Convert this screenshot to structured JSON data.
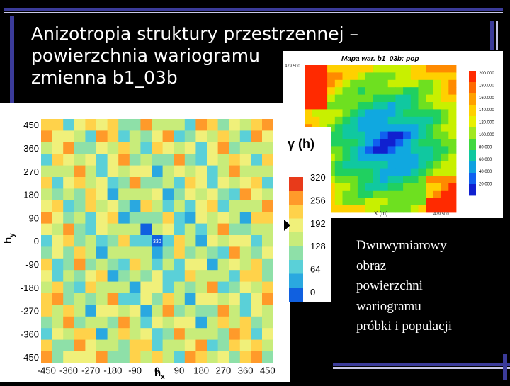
{
  "title": {
    "line1": "Anizotropia struktury przestrzennej –",
    "line2": "powierzchnia wariogramu",
    "line3": "zmienna b1_03b"
  },
  "left_plot": {
    "y_axis_label": "h",
    "y_axis_sub": "y",
    "x_axis_label": "h",
    "x_axis_sub": "x",
    "y_ticks": [
      "450",
      "360",
      "270",
      "180",
      "90",
      "0",
      "-90",
      "-180",
      "-270",
      "-360",
      "-450"
    ],
    "x_ticks": [
      "-450",
      "-360",
      "-270",
      "-180",
      "-90",
      "0",
      "90",
      "180",
      "270",
      "360",
      "450"
    ],
    "center_value": "330"
  },
  "legend": {
    "title": "γ (h)",
    "ticks": [
      "320",
      "256",
      "192",
      "128",
      "64",
      "0"
    ]
  },
  "right_plot": {
    "title": "Mapa war. b1_03b: pop",
    "y_top": "479.500",
    "x_label": "X (m)",
    "x_right": "479.500",
    "colorbar_ticks": [
      "200.000",
      "180.000",
      "160.000",
      "140.000",
      "120.000",
      "100.000",
      "80.000",
      "60.000",
      "40.000",
      "20.000"
    ]
  },
  "caption": {
    "line1": "Dwuwymiarowy",
    "line2": "obraz",
    "line3": "powierzchni",
    "line4": "wariogramu",
    "line5": "próbki i populacji"
  },
  "colors": {
    "background": "#000000",
    "accent_bar": "#3b3b9a",
    "light_bar": "#c8c8e8"
  }
}
